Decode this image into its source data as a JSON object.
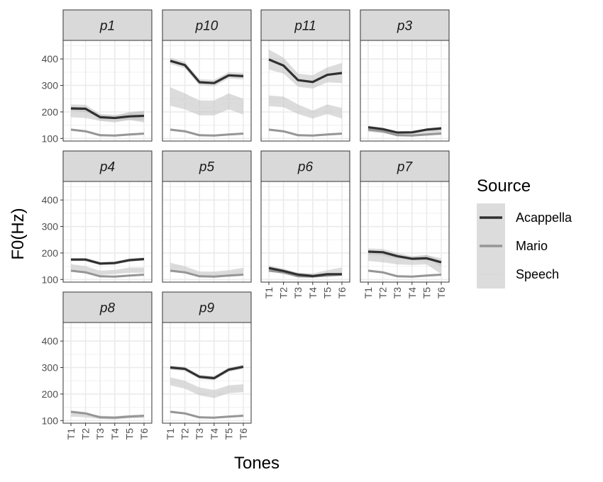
{
  "chart_data": {
    "type": "line",
    "facet_layout": "wrap-4-columns",
    "x_categories": [
      "T1",
      "T2",
      "T3",
      "T4",
      "T5",
      "T6"
    ],
    "ylim": [
      90,
      470
    ],
    "y_ticks": [
      100,
      200,
      300,
      400
    ],
    "xlabel": "Tones",
    "ylabel": "F0(Hz)",
    "grid": true,
    "legend": {
      "title": "Source",
      "position": "right",
      "entries": [
        {
          "name": "Acappella",
          "color": "#303030"
        },
        {
          "name": "Mario",
          "color": "#969696"
        },
        {
          "name": "Speech",
          "color": "#dadada"
        }
      ]
    },
    "ribbon_color": "#bfbfbf",
    "panels": [
      {
        "label": "p1",
        "series": [
          {
            "name": "Acappella",
            "values": [
              213,
              212,
              180,
              177,
              183,
              185
            ],
            "band": [
              15,
              15,
              12,
              12,
              14,
              18
            ]
          },
          {
            "name": "Mario",
            "values": [
              133,
              127,
              112,
              111,
              115,
              118
            ],
            "band": [
              4,
              4,
              4,
              4,
              4,
              4
            ]
          },
          {
            "name": "Speech",
            "values": [
              200,
              195,
              178,
              172,
              185,
              182
            ],
            "band": [
              20,
              18,
              12,
              12,
              15,
              22
            ]
          }
        ]
      },
      {
        "label": "p10",
        "series": [
          {
            "name": "Acappella",
            "values": [
              393,
              377,
              312,
              309,
              338,
              335
            ],
            "band": [
              12,
              12,
              12,
              12,
              12,
              12
            ]
          },
          {
            "name": "Mario",
            "values": [
              133,
              127,
              112,
              111,
              115,
              118
            ],
            "band": [
              4,
              4,
              4,
              4,
              4,
              4
            ]
          },
          {
            "name": "Speech",
            "values": [
              258,
              240,
              215,
              215,
              240,
              220
            ],
            "band": [
              35,
              30,
              28,
              28,
              30,
              30
            ]
          }
        ]
      },
      {
        "label": "p11",
        "series": [
          {
            "name": "Acappella",
            "values": [
              398,
              375,
              320,
              313,
              340,
              347
            ],
            "band": [
              38,
              30,
              25,
              25,
              28,
              38
            ]
          },
          {
            "name": "Mario",
            "values": [
              133,
              127,
              112,
              111,
              115,
              118
            ],
            "band": [
              4,
              4,
              4,
              4,
              4,
              4
            ]
          },
          {
            "name": "Speech",
            "values": [
              242,
              238,
              210,
              190,
              210,
              195
            ],
            "band": [
              20,
              20,
              18,
              15,
              18,
              20
            ]
          }
        ]
      },
      {
        "label": "p3",
        "series": [
          {
            "name": "Acappella",
            "values": [
              142,
              135,
              122,
              123,
              133,
              138
            ],
            "band": [
              6,
              5,
              5,
              5,
              5,
              6
            ]
          },
          {
            "name": "Mario",
            "values": [
              133,
              127,
              112,
              111,
              115,
              118
            ],
            "band": [
              4,
              4,
              4,
              4,
              4,
              4
            ]
          },
          {
            "name": "Speech",
            "values": [
              133,
              128,
              115,
              113,
              120,
              128
            ],
            "band": [
              8,
              8,
              6,
              6,
              7,
              8
            ]
          }
        ]
      },
      {
        "label": "p4",
        "series": [
          {
            "name": "Acappella",
            "values": [
              175,
              175,
              160,
              162,
              173,
              177
            ],
            "band": [
              6,
              6,
              6,
              6,
              6,
              6
            ]
          },
          {
            "name": "Mario",
            "values": [
              133,
              127,
              112,
              111,
              115,
              118
            ],
            "band": [
              4,
              4,
              4,
              4,
              4,
              4
            ]
          },
          {
            "name": "Speech",
            "values": [
              148,
              140,
              125,
              128,
              135,
              135
            ],
            "band": [
              10,
              10,
              8,
              8,
              10,
              10
            ]
          }
        ]
      },
      {
        "label": "p5",
        "series": [
          {
            "name": "Acappella",
            "values": [],
            "band": []
          },
          {
            "name": "Mario",
            "values": [
              133,
              127,
              112,
              111,
              115,
              118
            ],
            "band": [
              4,
              4,
              4,
              4,
              4,
              4
            ]
          },
          {
            "name": "Speech",
            "values": [
              148,
              138,
              120,
              120,
              125,
              132
            ],
            "band": [
              15,
              12,
              10,
              10,
              10,
              12
            ]
          }
        ]
      },
      {
        "label": "p6",
        "series": [
          {
            "name": "Acappella",
            "values": [
              143,
              132,
              118,
              113,
              120,
              120
            ],
            "band": [
              6,
              6,
              5,
              5,
              5,
              6
            ]
          },
          {
            "name": "Mario",
            "values": [
              133,
              127,
              112,
              111,
              115,
              118
            ],
            "band": [
              4,
              4,
              4,
              4,
              4,
              4
            ]
          },
          {
            "name": "Speech",
            "values": [
              143,
              130,
              118,
              115,
              125,
              130
            ],
            "band": [
              10,
              10,
              8,
              8,
              10,
              15
            ]
          }
        ]
      },
      {
        "label": "p7",
        "series": [
          {
            "name": "Acappella",
            "values": [
              205,
              203,
              188,
              178,
              180,
              165
            ],
            "band": [
              12,
              12,
              12,
              10,
              12,
              15
            ]
          },
          {
            "name": "Mario",
            "values": [
              133,
              127,
              112,
              111,
              115,
              118
            ],
            "band": [
              4,
              4,
              4,
              4,
              4,
              4
            ]
          },
          {
            "name": "Speech",
            "values": [
              190,
              185,
              175,
              170,
              175,
              145
            ],
            "band": [
              20,
              20,
              18,
              15,
              18,
              25
            ]
          }
        ]
      },
      {
        "label": "p8",
        "series": [
          {
            "name": "Acappella",
            "values": [],
            "band": []
          },
          {
            "name": "Mario",
            "values": [
              133,
              127,
              112,
              111,
              115,
              118
            ],
            "band": [
              4,
              4,
              4,
              4,
              4,
              4
            ]
          },
          {
            "name": "Speech",
            "values": [
              125,
              120,
              112,
              110,
              115,
              115
            ],
            "band": [
              10,
              8,
              6,
              6,
              6,
              6
            ]
          }
        ]
      },
      {
        "label": "p9",
        "series": [
          {
            "name": "Acappella",
            "values": [
              300,
              295,
              265,
              260,
              292,
              303
            ],
            "band": [
              8,
              8,
              8,
              8,
              8,
              8
            ]
          },
          {
            "name": "Mario",
            "values": [
              133,
              127,
              112,
              111,
              115,
              118
            ],
            "band": [
              4,
              4,
              4,
              4,
              4,
              4
            ]
          },
          {
            "name": "Speech",
            "values": [
              248,
              235,
              210,
              200,
              218,
              222
            ],
            "band": [
              15,
              15,
              15,
              15,
              15,
              15
            ]
          }
        ]
      }
    ]
  }
}
